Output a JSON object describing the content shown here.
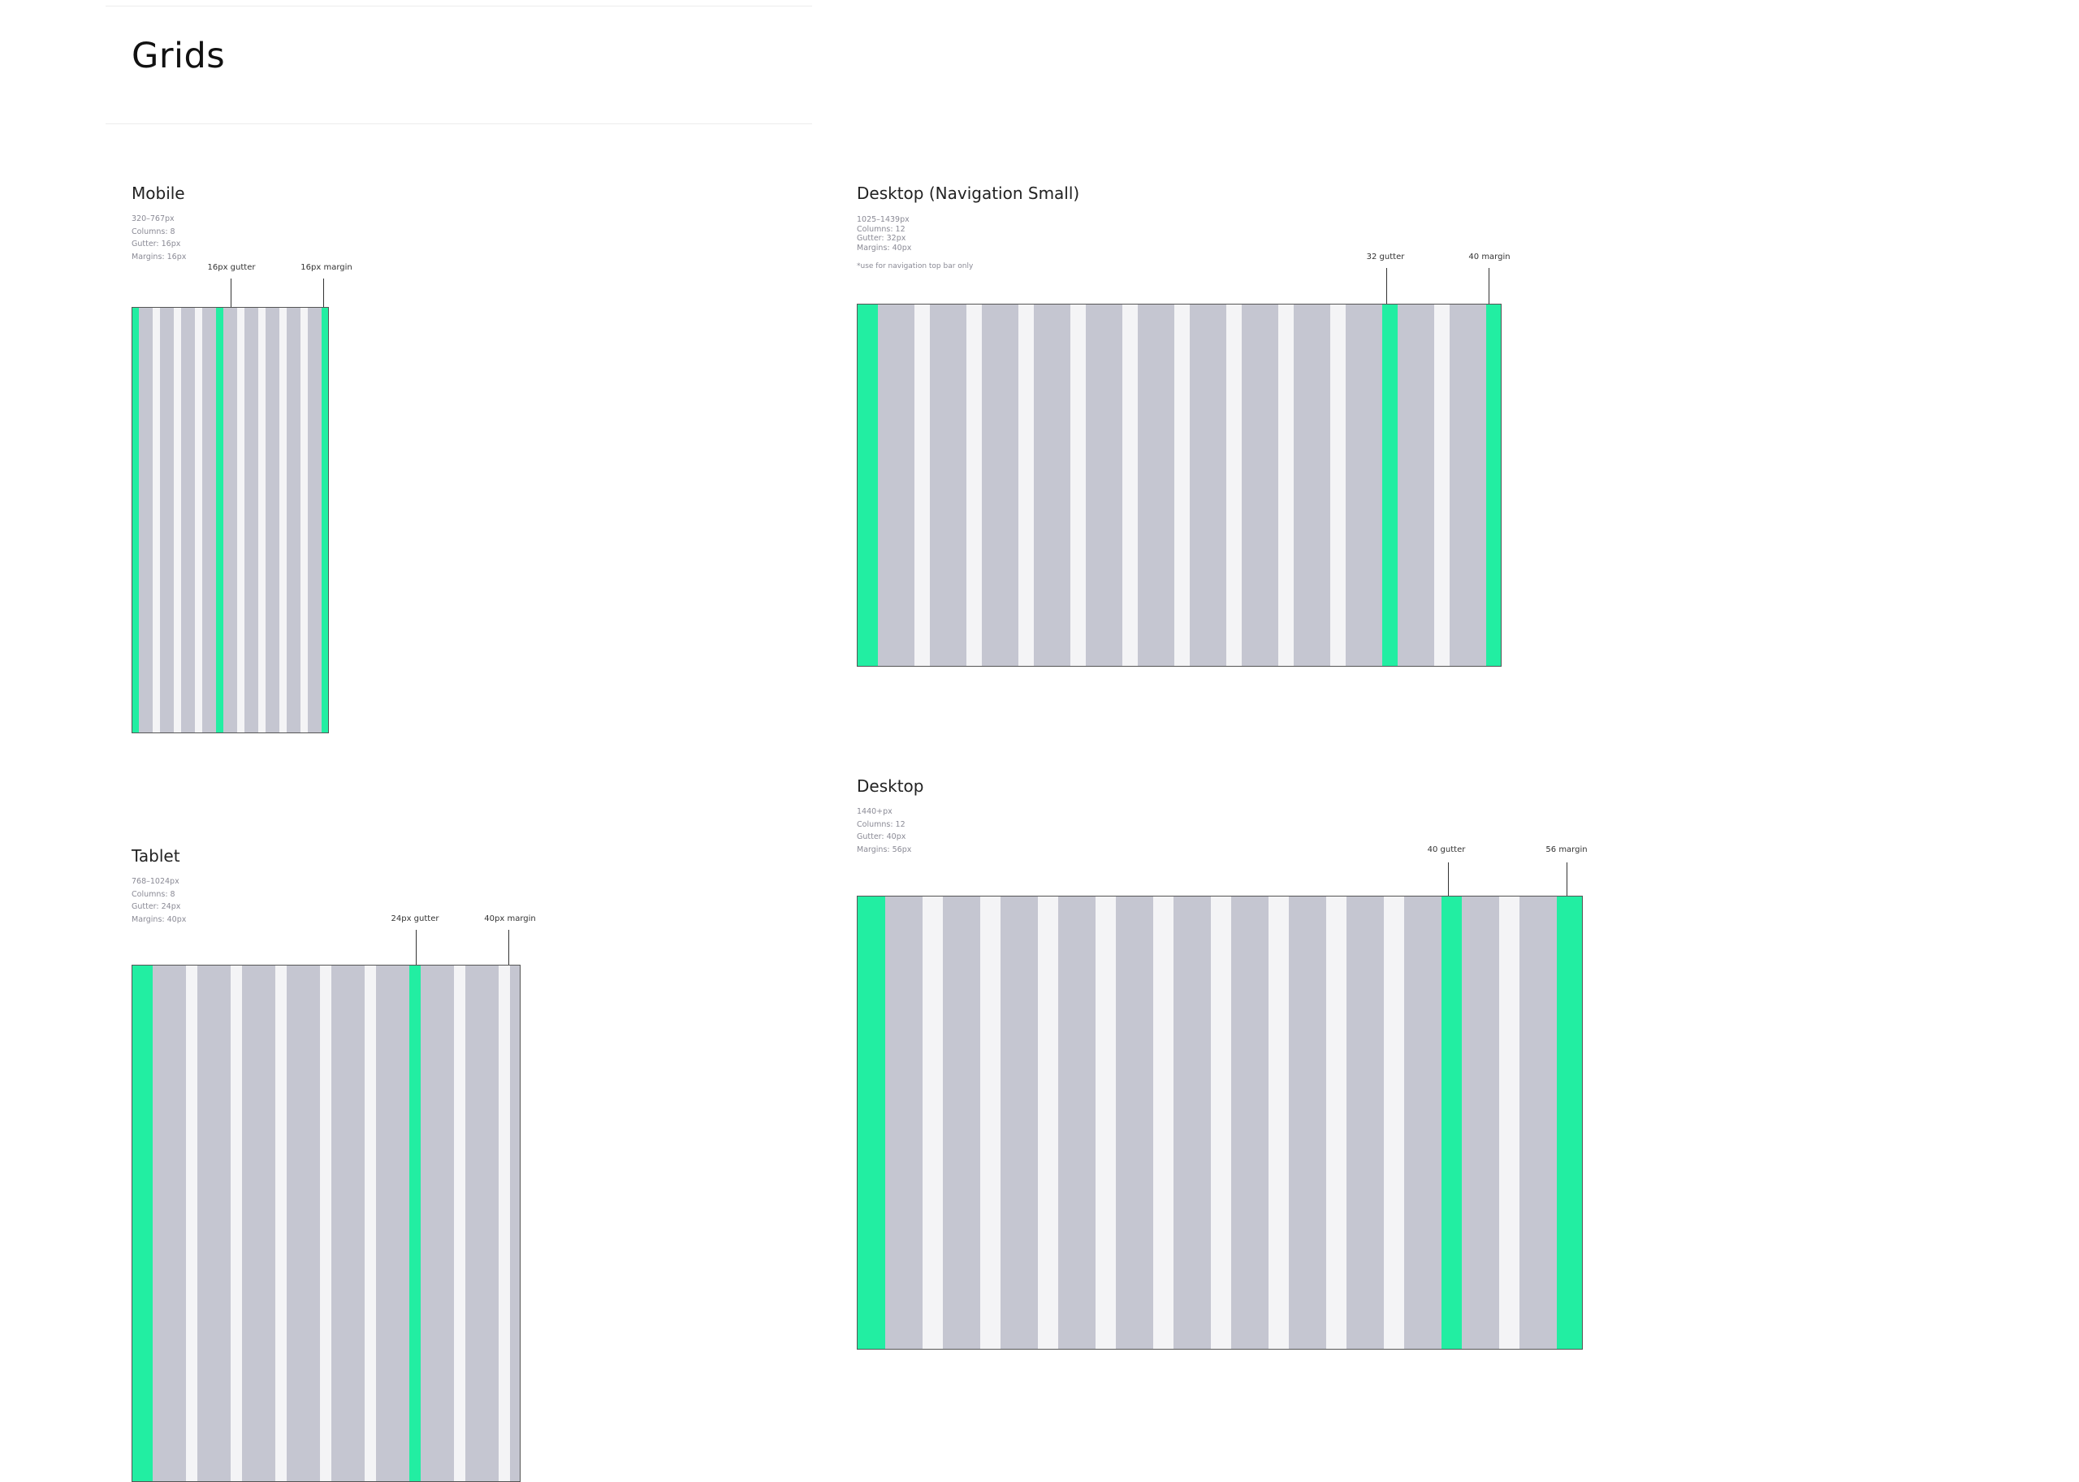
{
  "page": {
    "title": "Grids"
  },
  "colors": {
    "highlight": "#22eea2",
    "column": "#c5c6d1",
    "gutter": "#f4f4f6",
    "border": "#555555"
  },
  "sections": {
    "mobile": {
      "title": "Mobile",
      "specs": [
        "320–767px",
        "Columns: 8",
        "Gutter: 16px",
        "Margins: 16px"
      ],
      "gutter_label": "16px gutter",
      "margin_label": "16px margin"
    },
    "desktop_nav_small": {
      "title": "Desktop (Navigation Small)",
      "specs": [
        "1025–1439px",
        "Columns: 12",
        "Gutter: 32px",
        "Margins: 40px"
      ],
      "note": "*use for navigation top bar only",
      "gutter_label": "32 gutter",
      "margin_label": "40 margin"
    },
    "tablet": {
      "title": "Tablet",
      "specs": [
        "768–1024px",
        "Columns: 8",
        "Gutter: 24px",
        "Margins: 40px"
      ],
      "gutter_label": "24px gutter",
      "margin_label": "40px margin"
    },
    "desktop": {
      "title": "Desktop",
      "specs": [
        "1440+px",
        "Columns: 12",
        "Gutter: 40px",
        "Margins: 56px"
      ],
      "gutter_label": "40 gutter",
      "margin_label": "56 margin"
    }
  }
}
